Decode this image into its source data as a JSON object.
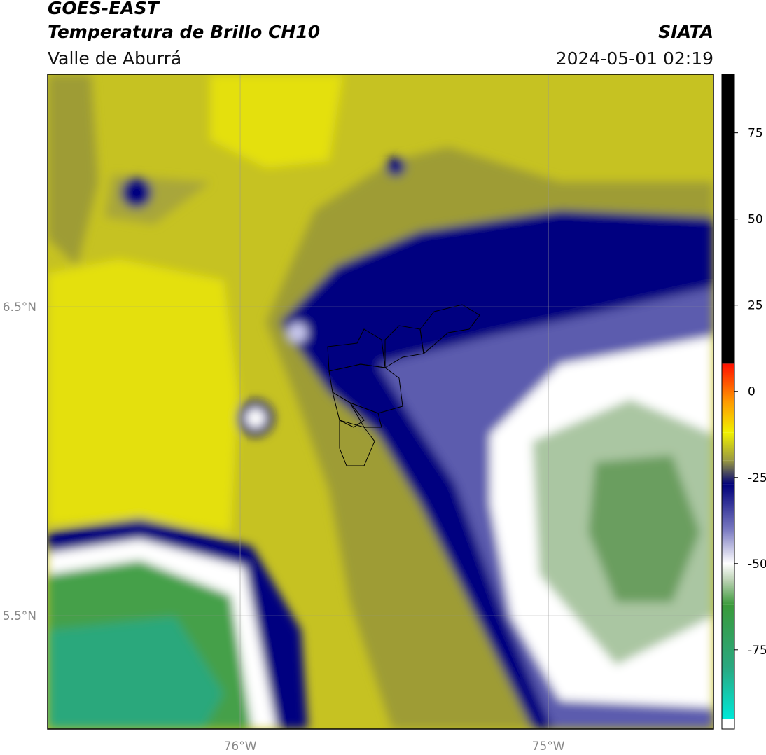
{
  "chart_data": {
    "type": "map",
    "title": "GOES-EAST",
    "subtitle": "Temperatura de Brillo CH10",
    "region": "Valle de Aburrá",
    "source": "SIATA",
    "timestamp": "2024-05-01 02:19",
    "xlim": [
      -76.625,
      -74.464
    ],
    "ylim": [
      5.133,
      7.253
    ],
    "xticks": [
      {
        "value": -76,
        "label": "76°W"
      },
      {
        "value": -75,
        "label": "75°W"
      }
    ],
    "yticks": [
      {
        "value": 6.5,
        "label": "6.5°N"
      },
      {
        "value": 5.5,
        "label": "5.5°N"
      }
    ],
    "grid": true,
    "colorbar": {
      "lim": [
        -98,
        92
      ],
      "ticks": [
        75,
        50,
        25,
        0,
        -25,
        -50,
        -75
      ],
      "stops": [
        {
          "value": -98,
          "color": "#ffffff"
        },
        {
          "value": -95,
          "color": "#ffffff"
        },
        {
          "value": -95,
          "color": "#00e8d8"
        },
        {
          "value": -80,
          "color": "#2aa880"
        },
        {
          "value": -62,
          "color": "#3a9a3a"
        },
        {
          "value": -55,
          "color": "#b8d0b0"
        },
        {
          "value": -50,
          "color": "#ffffff"
        },
        {
          "value": -40,
          "color": "#7878c0"
        },
        {
          "value": -27,
          "color": "#00007a"
        },
        {
          "value": -20,
          "color": "#9a9a40"
        },
        {
          "value": -12,
          "color": "#f0f000"
        },
        {
          "value": -3,
          "color": "#ff9a00"
        },
        {
          "value": 8,
          "color": "#ff1000"
        },
        {
          "value": 8,
          "color": "#000000"
        },
        {
          "value": 92,
          "color": "#000000"
        }
      ]
    }
  }
}
